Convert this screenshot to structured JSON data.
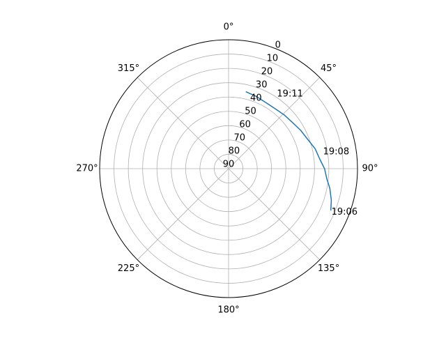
{
  "chart_data": {
    "type": "line",
    "projection": "polar",
    "theta_zero_location": "north",
    "theta_direction": "clockwise",
    "theta_ticks_deg": [
      0,
      45,
      90,
      135,
      180,
      225,
      270,
      315
    ],
    "theta_tick_labels": [
      "0°",
      "45°",
      "90°",
      "135°",
      "180°",
      "225°",
      "270°",
      "315°"
    ],
    "r_axis": "elevation (90 at centre, 0 at rim)",
    "r_ticks": [
      0,
      10,
      20,
      30,
      40,
      50,
      60,
      70,
      80,
      90
    ],
    "r_tick_labels": [
      "0",
      "10",
      "20",
      "30",
      "40",
      "50",
      "60",
      "70",
      "80",
      "90"
    ],
    "grid": true,
    "series": [
      {
        "color": "#1f77b4",
        "points": [
          {
            "azimuth": 112,
            "elevation": 13
          },
          {
            "azimuth": 107,
            "elevation": 15
          },
          {
            "azimuth": 101,
            "elevation": 18
          },
          {
            "azimuth": 96,
            "elevation": 21
          },
          {
            "azimuth": 90,
            "elevation": 23
          },
          {
            "azimuth": 84,
            "elevation": 26
          },
          {
            "azimuth": 77,
            "elevation": 28
          },
          {
            "azimuth": 70,
            "elevation": 31
          },
          {
            "azimuth": 62,
            "elevation": 33
          },
          {
            "azimuth": 54,
            "elevation": 35
          },
          {
            "azimuth": 46,
            "elevation": 36
          },
          {
            "azimuth": 38,
            "elevation": 37
          },
          {
            "azimuth": 29,
            "elevation": 37
          },
          {
            "azimuth": 21,
            "elevation": 36
          },
          {
            "azimuth": 13,
            "elevation": 35
          }
        ]
      }
    ],
    "annotations": [
      {
        "text": "19:06",
        "azimuth": 113,
        "elevation": 12
      },
      {
        "text": "19:08",
        "azimuth": 80,
        "elevation": 23
      },
      {
        "text": "19:11",
        "azimuth": 33,
        "elevation": 28
      }
    ]
  }
}
